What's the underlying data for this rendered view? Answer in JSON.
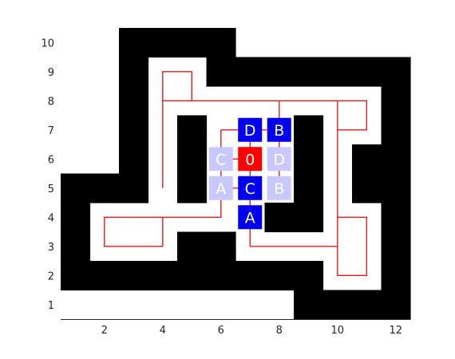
{
  "colors": {
    "wall": "#000000",
    "path": "#e41a1c",
    "agent": "#ff0000",
    "goal": "#0000ee",
    "visited": "#c8c8ff",
    "tile_text": "#ffffff",
    "axis": "#262626"
  },
  "chart_data": {
    "type": "grid-map",
    "xlim": [
      0.5,
      12.5
    ],
    "ylim": [
      0.5,
      10.5
    ],
    "x_ticks": [
      2,
      4,
      6,
      8,
      10,
      12
    ],
    "y_ticks": [
      1,
      2,
      3,
      4,
      5,
      6,
      7,
      8,
      9,
      10
    ],
    "x_tick_labels": [
      "2",
      "4",
      "6",
      "8",
      "10",
      "12"
    ],
    "y_tick_labels": [
      "1",
      "2",
      "3",
      "4",
      "5",
      "6",
      "7",
      "8",
      "9",
      "10"
    ],
    "walls": [
      [
        3,
        10
      ],
      [
        4,
        10
      ],
      [
        5,
        10
      ],
      [
        6,
        10
      ],
      [
        3,
        9
      ],
      [
        6,
        9
      ],
      [
        7,
        9
      ],
      [
        8,
        9
      ],
      [
        9,
        9
      ],
      [
        10,
        9
      ],
      [
        11,
        9
      ],
      [
        12,
        9
      ],
      [
        3,
        8
      ],
      [
        12,
        8
      ],
      [
        3,
        7
      ],
      [
        5,
        7
      ],
      [
        9,
        7
      ],
      [
        12,
        7
      ],
      [
        3,
        6
      ],
      [
        5,
        6
      ],
      [
        9,
        6
      ],
      [
        11,
        6
      ],
      [
        12,
        6
      ],
      [
        1,
        5
      ],
      [
        2,
        5
      ],
      [
        3,
        5
      ],
      [
        5,
        5
      ],
      [
        9,
        5
      ],
      [
        11,
        5
      ],
      [
        12,
        5
      ],
      [
        1,
        4
      ],
      [
        8,
        4
      ],
      [
        9,
        4
      ],
      [
        12,
        4
      ],
      [
        1,
        3
      ],
      [
        5,
        3
      ],
      [
        6,
        3
      ],
      [
        12,
        3
      ],
      [
        1,
        2
      ],
      [
        2,
        2
      ],
      [
        3,
        2
      ],
      [
        4,
        2
      ],
      [
        5,
        2
      ],
      [
        6,
        2
      ],
      [
        7,
        2
      ],
      [
        8,
        2
      ],
      [
        9,
        2
      ],
      [
        12,
        2
      ],
      [
        9,
        1
      ],
      [
        10,
        1
      ],
      [
        11,
        1
      ],
      [
        12,
        1
      ]
    ],
    "paths": [
      [
        [
          7,
          6
        ],
        [
          7,
          4
        ]
      ],
      [
        [
          7,
          6
        ],
        [
          6,
          6
        ]
      ],
      [
        [
          7,
          6
        ],
        [
          7,
          7
        ]
      ],
      [
        [
          7,
          7
        ],
        [
          8,
          7
        ]
      ],
      [
        [
          8,
          7
        ],
        [
          8,
          6
        ]
      ],
      [
        [
          8,
          6
        ],
        [
          8,
          5
        ]
      ],
      [
        [
          7,
          5
        ],
        [
          6,
          5
        ]
      ],
      [
        [
          6,
          7
        ],
        [
          6,
          4
        ],
        [
          2,
          4
        ],
        [
          2,
          3
        ],
        [
          4,
          3
        ],
        [
          4,
          4
        ]
      ],
      [
        [
          6,
          7
        ],
        [
          7,
          7
        ]
      ],
      [
        [
          8,
          8
        ],
        [
          8,
          7
        ]
      ],
      [
        [
          4,
          5
        ],
        [
          4,
          8
        ],
        [
          11,
          8
        ],
        [
          11,
          7
        ],
        [
          10,
          7
        ]
      ],
      [
        [
          4,
          8
        ],
        [
          4,
          9
        ],
        [
          5,
          9
        ],
        [
          5,
          8
        ]
      ],
      [
        [
          10,
          8
        ],
        [
          10,
          2
        ],
        [
          11,
          2
        ],
        [
          11,
          4
        ],
        [
          10,
          4
        ]
      ],
      [
        [
          7,
          4
        ],
        [
          7,
          3
        ],
        [
          10,
          3
        ]
      ]
    ],
    "tiles": [
      {
        "label": "D",
        "x": 7,
        "y": 7,
        "kind": "goal"
      },
      {
        "label": "B",
        "x": 8,
        "y": 7,
        "kind": "goal"
      },
      {
        "label": "C",
        "x": 6,
        "y": 6,
        "kind": "visited"
      },
      {
        "label": "0",
        "x": 7,
        "y": 6,
        "kind": "agent"
      },
      {
        "label": "D",
        "x": 8,
        "y": 6,
        "kind": "visited"
      },
      {
        "label": "A",
        "x": 6,
        "y": 5,
        "kind": "visited"
      },
      {
        "label": "C",
        "x": 7,
        "y": 5,
        "kind": "goal"
      },
      {
        "label": "B",
        "x": 8,
        "y": 5,
        "kind": "visited"
      },
      {
        "label": "A",
        "x": 7,
        "y": 4,
        "kind": "goal"
      }
    ]
  }
}
